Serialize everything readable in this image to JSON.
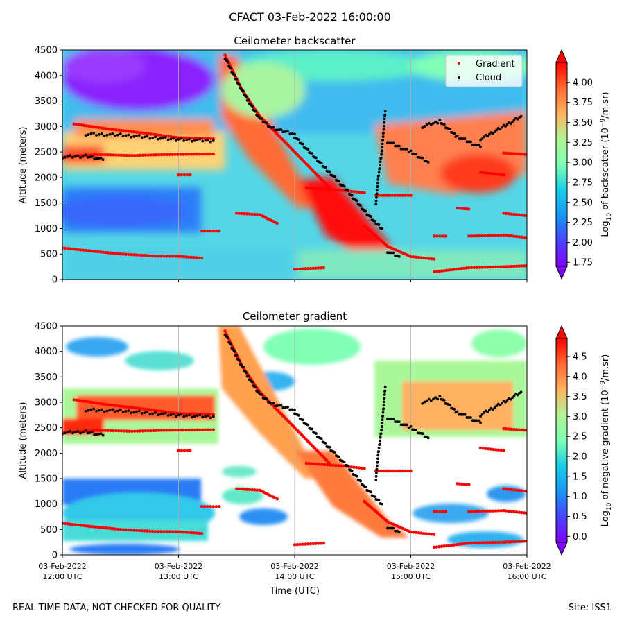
{
  "suptitle": "CFACT 03-Feb-2022 16:00:00",
  "footer_left": "REAL TIME DATA, NOT CHECKED FOR QUALITY",
  "footer_right": "Site: ISS1",
  "chart_data": [
    {
      "type": "heatmap",
      "title": "Ceilometer backscatter",
      "ylabel": "Altitude (meters)",
      "xlabel": "",
      "ylim": [
        0,
        4500
      ],
      "yticks": [
        "0",
        "500",
        "1000",
        "1500",
        "2000",
        "2500",
        "3000",
        "3500",
        "4000",
        "4500"
      ],
      "xticks": [
        {
          "date": "03-Feb-2022",
          "time": "12:00 UTC"
        },
        {
          "date": "03-Feb-2022",
          "time": "13:00 UTC"
        },
        {
          "date": "03-Feb-2022",
          "time": "14:00 UTC"
        },
        {
          "date": "03-Feb-2022",
          "time": "15:00 UTC"
        },
        {
          "date": "03-Feb-2022",
          "time": "16:00 UTC"
        }
      ],
      "show_xtick_labels": false,
      "colormap": "rainbow",
      "colorbar": {
        "label": "Log10 of backscatter (10^-9/m.sr)",
        "label_main": "Log",
        "label_sub": "10",
        "label_rest": " of backscatter (10",
        "label_sup": "−9",
        "label_end": "/m.sr)",
        "range": [
          1.7,
          4.25
        ],
        "ticks": [
          "1.75",
          "2.00",
          "2.25",
          "2.50",
          "2.75",
          "3.00",
          "3.25",
          "3.50",
          "3.75",
          "4.00"
        ]
      },
      "legend": {
        "position": "top-right",
        "entries": [
          "Gradient",
          "Cloud"
        ]
      },
      "series": [
        {
          "name": "Gradient",
          "color": "#ff0000",
          "segments": [
            [
              [
                12.0,
                620
              ],
              [
                12.2,
                570
              ],
              [
                12.5,
                500
              ],
              [
                12.8,
                460
              ],
              [
                13.0,
                455
              ],
              [
                13.2,
                420
              ]
            ],
            [
              [
                12.0,
                2400
              ],
              [
                12.3,
                2450
              ],
              [
                12.6,
                2430
              ],
              [
                12.9,
                2450
              ],
              [
                13.3,
                2460
              ]
            ],
            [
              [
                12.1,
                3050
              ],
              [
                12.4,
                2950
              ],
              [
                12.7,
                2870
              ],
              [
                13.0,
                2780
              ],
              [
                13.3,
                2760
              ]
            ],
            [
              [
                13.5,
                1300
              ],
              [
                13.7,
                1270
              ],
              [
                13.85,
                1100
              ]
            ],
            [
              [
                13.0,
                2050
              ],
              [
                13.1,
                2050
              ]
            ],
            [
              [
                13.2,
                950
              ],
              [
                13.35,
                950
              ]
            ],
            [
              [
                13.4,
                4400
              ],
              [
                13.55,
                3700
              ],
              [
                13.7,
                3200
              ],
              [
                13.85,
                2850
              ],
              [
                14.0,
                2500
              ],
              [
                14.15,
                2150
              ],
              [
                14.3,
                1800
              ]
            ],
            [
              [
                14.1,
                1800
              ],
              [
                14.4,
                1750
              ],
              [
                14.6,
                1700
              ]
            ],
            [
              [
                14.6,
                1050
              ],
              [
                14.8,
                650
              ],
              [
                15.0,
                450
              ],
              [
                15.2,
                400
              ]
            ],
            [
              [
                14.0,
                200
              ],
              [
                14.25,
                230
              ]
            ],
            [
              [
                14.7,
                1650
              ],
              [
                15.0,
                1650
              ]
            ],
            [
              [
                15.2,
                850
              ],
              [
                15.3,
                850
              ]
            ],
            [
              [
                15.4,
                1400
              ],
              [
                15.5,
                1380
              ]
            ],
            [
              [
                15.2,
                150
              ],
              [
                15.5,
                230
              ],
              [
                15.8,
                250
              ],
              [
                16.0,
                270
              ]
            ],
            [
              [
                15.5,
                850
              ],
              [
                15.8,
                870
              ],
              [
                16.0,
                820
              ]
            ],
            [
              [
                15.8,
                1300
              ],
              [
                16.0,
                1250
              ]
            ],
            [
              [
                15.8,
                2480
              ],
              [
                16.0,
                2450
              ]
            ],
            [
              [
                15.6,
                2100
              ],
              [
                15.8,
                2050
              ]
            ]
          ]
        },
        {
          "name": "Cloud",
          "color": "#000000",
          "segments": [
            [
              [
                12.0,
                2400
              ],
              [
                12.2,
                2420
              ],
              [
                12.35,
                2350
              ]
            ],
            [
              [
                12.2,
                2850
              ],
              [
                12.5,
                2830
              ],
              [
                12.8,
                2780
              ],
              [
                13.0,
                2740
              ],
              [
                13.3,
                2720
              ]
            ],
            [
              [
                13.4,
                4350
              ],
              [
                13.5,
                3900
              ],
              [
                13.6,
                3500
              ],
              [
                13.7,
                3150
              ],
              [
                13.8,
                2980
              ],
              [
                13.9,
                2900
              ],
              [
                14.0,
                2850
              ]
            ],
            [
              [
                14.0,
                2800
              ],
              [
                14.15,
                2450
              ],
              [
                14.3,
                2100
              ],
              [
                14.45,
                1750
              ],
              [
                14.6,
                1350
              ],
              [
                14.7,
                1100
              ],
              [
                14.75,
                1000
              ]
            ],
            [
              [
                14.7,
                1500
              ],
              [
                14.72,
                2000
              ],
              [
                14.75,
                2500
              ],
              [
                14.78,
                3300
              ]
            ],
            [
              [
                14.8,
                2700
              ],
              [
                15.0,
                2500
              ],
              [
                15.15,
                2300
              ]
            ],
            [
              [
                15.1,
                3000
              ],
              [
                15.25,
                3100
              ],
              [
                15.4,
                2800
              ],
              [
                15.6,
                2600
              ]
            ],
            [
              [
                15.6,
                2750
              ],
              [
                15.8,
                3000
              ],
              [
                15.95,
                3200
              ]
            ],
            [
              [
                14.8,
                550
              ],
              [
                14.9,
                450
              ]
            ]
          ]
        }
      ]
    },
    {
      "type": "heatmap",
      "title": "Ceilometer gradient",
      "ylabel": "Altitude (meters)",
      "xlabel": "Time (UTC)",
      "ylim": [
        0,
        4500
      ],
      "yticks": [
        "0",
        "500",
        "1000",
        "1500",
        "2000",
        "2500",
        "3000",
        "3500",
        "4000",
        "4500"
      ],
      "xticks": [
        {
          "date": "03-Feb-2022",
          "time": "12:00 UTC"
        },
        {
          "date": "03-Feb-2022",
          "time": "13:00 UTC"
        },
        {
          "date": "03-Feb-2022",
          "time": "14:00 UTC"
        },
        {
          "date": "03-Feb-2022",
          "time": "15:00 UTC"
        },
        {
          "date": "03-Feb-2022",
          "time": "16:00 UTC"
        }
      ],
      "show_xtick_labels": true,
      "colormap": "rainbow",
      "colorbar": {
        "label": "Log10 of negative gradient (10^-9/m.sr)",
        "label_main": "Log",
        "label_sub": "10",
        "label_rest": " of negative gradient (10",
        "label_sup": "−9",
        "label_end": "/m.sr)",
        "range": [
          -0.15,
          4.95
        ],
        "ticks": [
          "0.0",
          "0.5",
          "1.0",
          "1.5",
          "2.0",
          "2.5",
          "3.0",
          "3.5",
          "4.0",
          "4.5"
        ]
      },
      "series": [
        {
          "name": "Gradient",
          "color": "#ff0000",
          "segments": [
            [
              [
                12.0,
                620
              ],
              [
                12.2,
                570
              ],
              [
                12.5,
                500
              ],
              [
                12.8,
                460
              ],
              [
                13.0,
                455
              ],
              [
                13.2,
                420
              ]
            ],
            [
              [
                12.0,
                2400
              ],
              [
                12.3,
                2450
              ],
              [
                12.6,
                2430
              ],
              [
                12.9,
                2450
              ],
              [
                13.3,
                2460
              ]
            ],
            [
              [
                12.1,
                3050
              ],
              [
                12.4,
                2950
              ],
              [
                12.7,
                2870
              ],
              [
                13.0,
                2780
              ],
              [
                13.3,
                2760
              ]
            ],
            [
              [
                13.5,
                1300
              ],
              [
                13.7,
                1270
              ],
              [
                13.85,
                1100
              ]
            ],
            [
              [
                13.0,
                2050
              ],
              [
                13.1,
                2050
              ]
            ],
            [
              [
                13.2,
                950
              ],
              [
                13.35,
                950
              ]
            ],
            [
              [
                13.4,
                4400
              ],
              [
                13.55,
                3700
              ],
              [
                13.7,
                3200
              ],
              [
                13.85,
                2850
              ],
              [
                14.0,
                2500
              ],
              [
                14.15,
                2150
              ],
              [
                14.3,
                1800
              ]
            ],
            [
              [
                14.1,
                1800
              ],
              [
                14.4,
                1750
              ],
              [
                14.6,
                1700
              ]
            ],
            [
              [
                14.6,
                1050
              ],
              [
                14.8,
                650
              ],
              [
                15.0,
                450
              ],
              [
                15.2,
                400
              ]
            ],
            [
              [
                14.0,
                200
              ],
              [
                14.25,
                230
              ]
            ],
            [
              [
                14.7,
                1650
              ],
              [
                15.0,
                1650
              ]
            ],
            [
              [
                15.2,
                850
              ],
              [
                15.3,
                850
              ]
            ],
            [
              [
                15.4,
                1400
              ],
              [
                15.5,
                1380
              ]
            ],
            [
              [
                15.2,
                150
              ],
              [
                15.5,
                230
              ],
              [
                15.8,
                250
              ],
              [
                16.0,
                270
              ]
            ],
            [
              [
                15.5,
                850
              ],
              [
                15.8,
                870
              ],
              [
                16.0,
                820
              ]
            ],
            [
              [
                15.8,
                1300
              ],
              [
                16.0,
                1250
              ]
            ],
            [
              [
                15.8,
                2480
              ],
              [
                16.0,
                2450
              ]
            ],
            [
              [
                15.6,
                2100
              ],
              [
                15.8,
                2050
              ]
            ]
          ]
        },
        {
          "name": "Cloud",
          "color": "#000000",
          "segments": [
            [
              [
                12.0,
                2400
              ],
              [
                12.2,
                2420
              ],
              [
                12.35,
                2350
              ]
            ],
            [
              [
                12.2,
                2850
              ],
              [
                12.5,
                2830
              ],
              [
                12.8,
                2780
              ],
              [
                13.0,
                2740
              ],
              [
                13.3,
                2720
              ]
            ],
            [
              [
                13.4,
                4350
              ],
              [
                13.5,
                3900
              ],
              [
                13.6,
                3500
              ],
              [
                13.7,
                3150
              ],
              [
                13.8,
                2980
              ],
              [
                13.9,
                2900
              ],
              [
                14.0,
                2850
              ]
            ],
            [
              [
                14.0,
                2800
              ],
              [
                14.15,
                2450
              ],
              [
                14.3,
                2100
              ],
              [
                14.45,
                1750
              ],
              [
                14.6,
                1350
              ],
              [
                14.7,
                1100
              ],
              [
                14.75,
                1000
              ]
            ],
            [
              [
                14.7,
                1500
              ],
              [
                14.72,
                2000
              ],
              [
                14.75,
                2500
              ],
              [
                14.78,
                3300
              ]
            ],
            [
              [
                14.8,
                2700
              ],
              [
                15.0,
                2500
              ],
              [
                15.15,
                2300
              ]
            ],
            [
              [
                15.1,
                3000
              ],
              [
                15.25,
                3100
              ],
              [
                15.4,
                2800
              ],
              [
                15.6,
                2600
              ]
            ],
            [
              [
                15.6,
                2750
              ],
              [
                15.8,
                3000
              ],
              [
                15.95,
                3200
              ]
            ],
            [
              [
                14.8,
                550
              ],
              [
                14.9,
                450
              ]
            ]
          ]
        }
      ]
    }
  ]
}
